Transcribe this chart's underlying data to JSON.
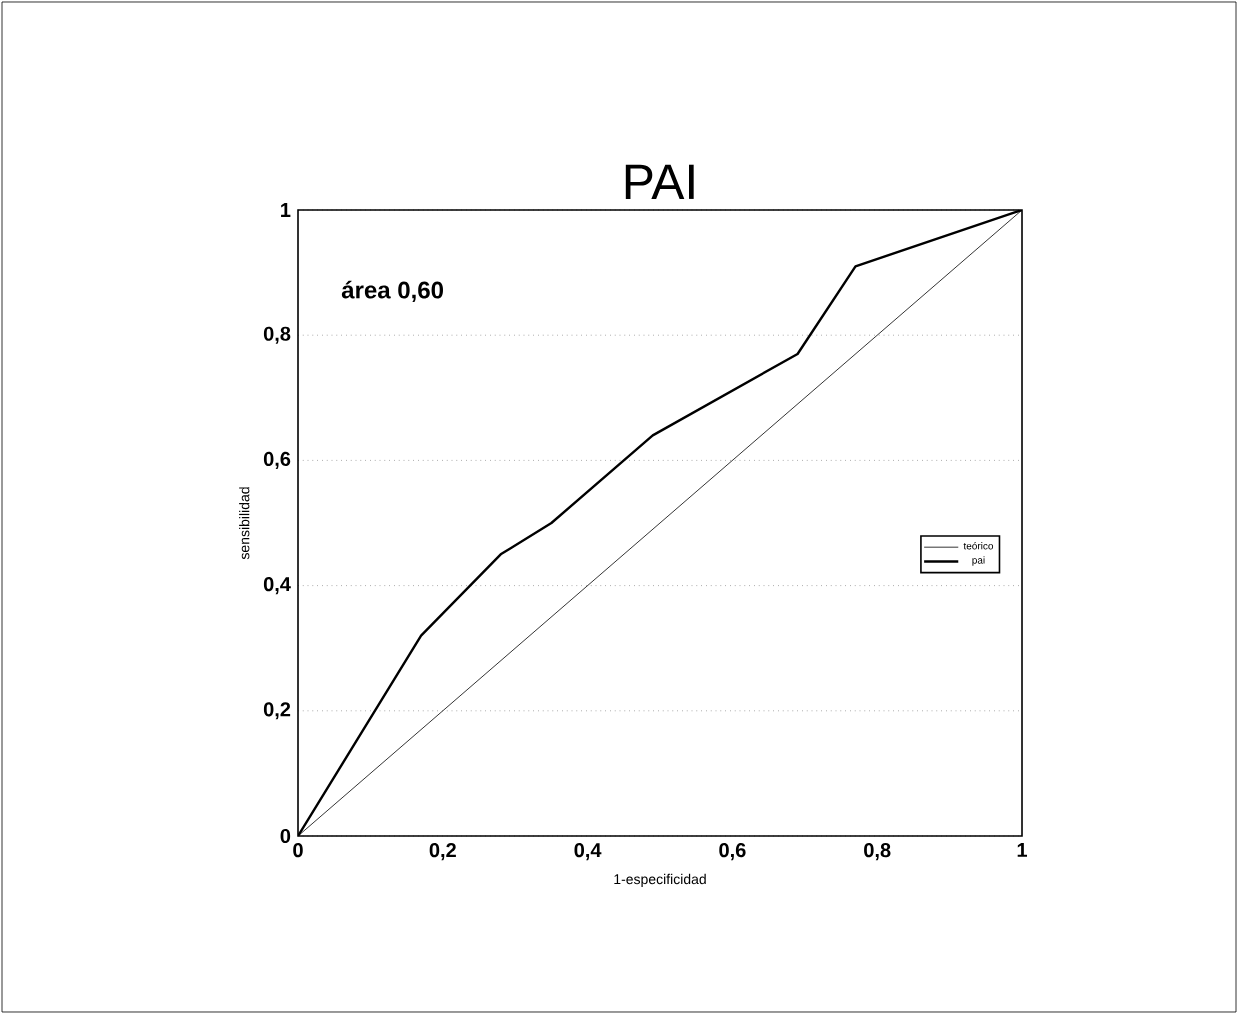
{
  "chart_data": {
    "type": "line",
    "title": "PAI",
    "xlabel": "1-especificidad",
    "ylabel": "sensibilidad",
    "annotations": [
      "área 0,60"
    ],
    "series": [
      {
        "name": "teórico",
        "color": "#000000",
        "x": [
          0,
          1
        ],
        "values": [
          0,
          1
        ]
      },
      {
        "name": "pai",
        "color": "#000000",
        "x": [
          0,
          0.17,
          0.28,
          0.35,
          0.49,
          0.69,
          0.77,
          1
        ],
        "values": [
          0,
          0.32,
          0.45,
          0.5,
          0.64,
          0.77,
          0.91,
          1
        ]
      }
    ],
    "xlim": [
      0,
      1
    ],
    "ylim": [
      0,
      1
    ],
    "xticks": [
      0,
      {
        "value": 0.2,
        "label": "0,2"
      },
      {
        "value": 0.4,
        "label": "0,4"
      },
      {
        "value": 0.6,
        "label": "0,6"
      },
      {
        "value": 0.8,
        "label": "0,8"
      },
      1
    ],
    "yticks": [
      0,
      {
        "value": 0.2,
        "label": "0,2"
      },
      {
        "value": 0.4,
        "label": "0,4"
      },
      {
        "value": 0.6,
        "label": "0,6"
      },
      {
        "value": 0.8,
        "label": "0,8"
      },
      1
    ],
    "grid": "y",
    "legend": "right",
    "marker": "none"
  }
}
